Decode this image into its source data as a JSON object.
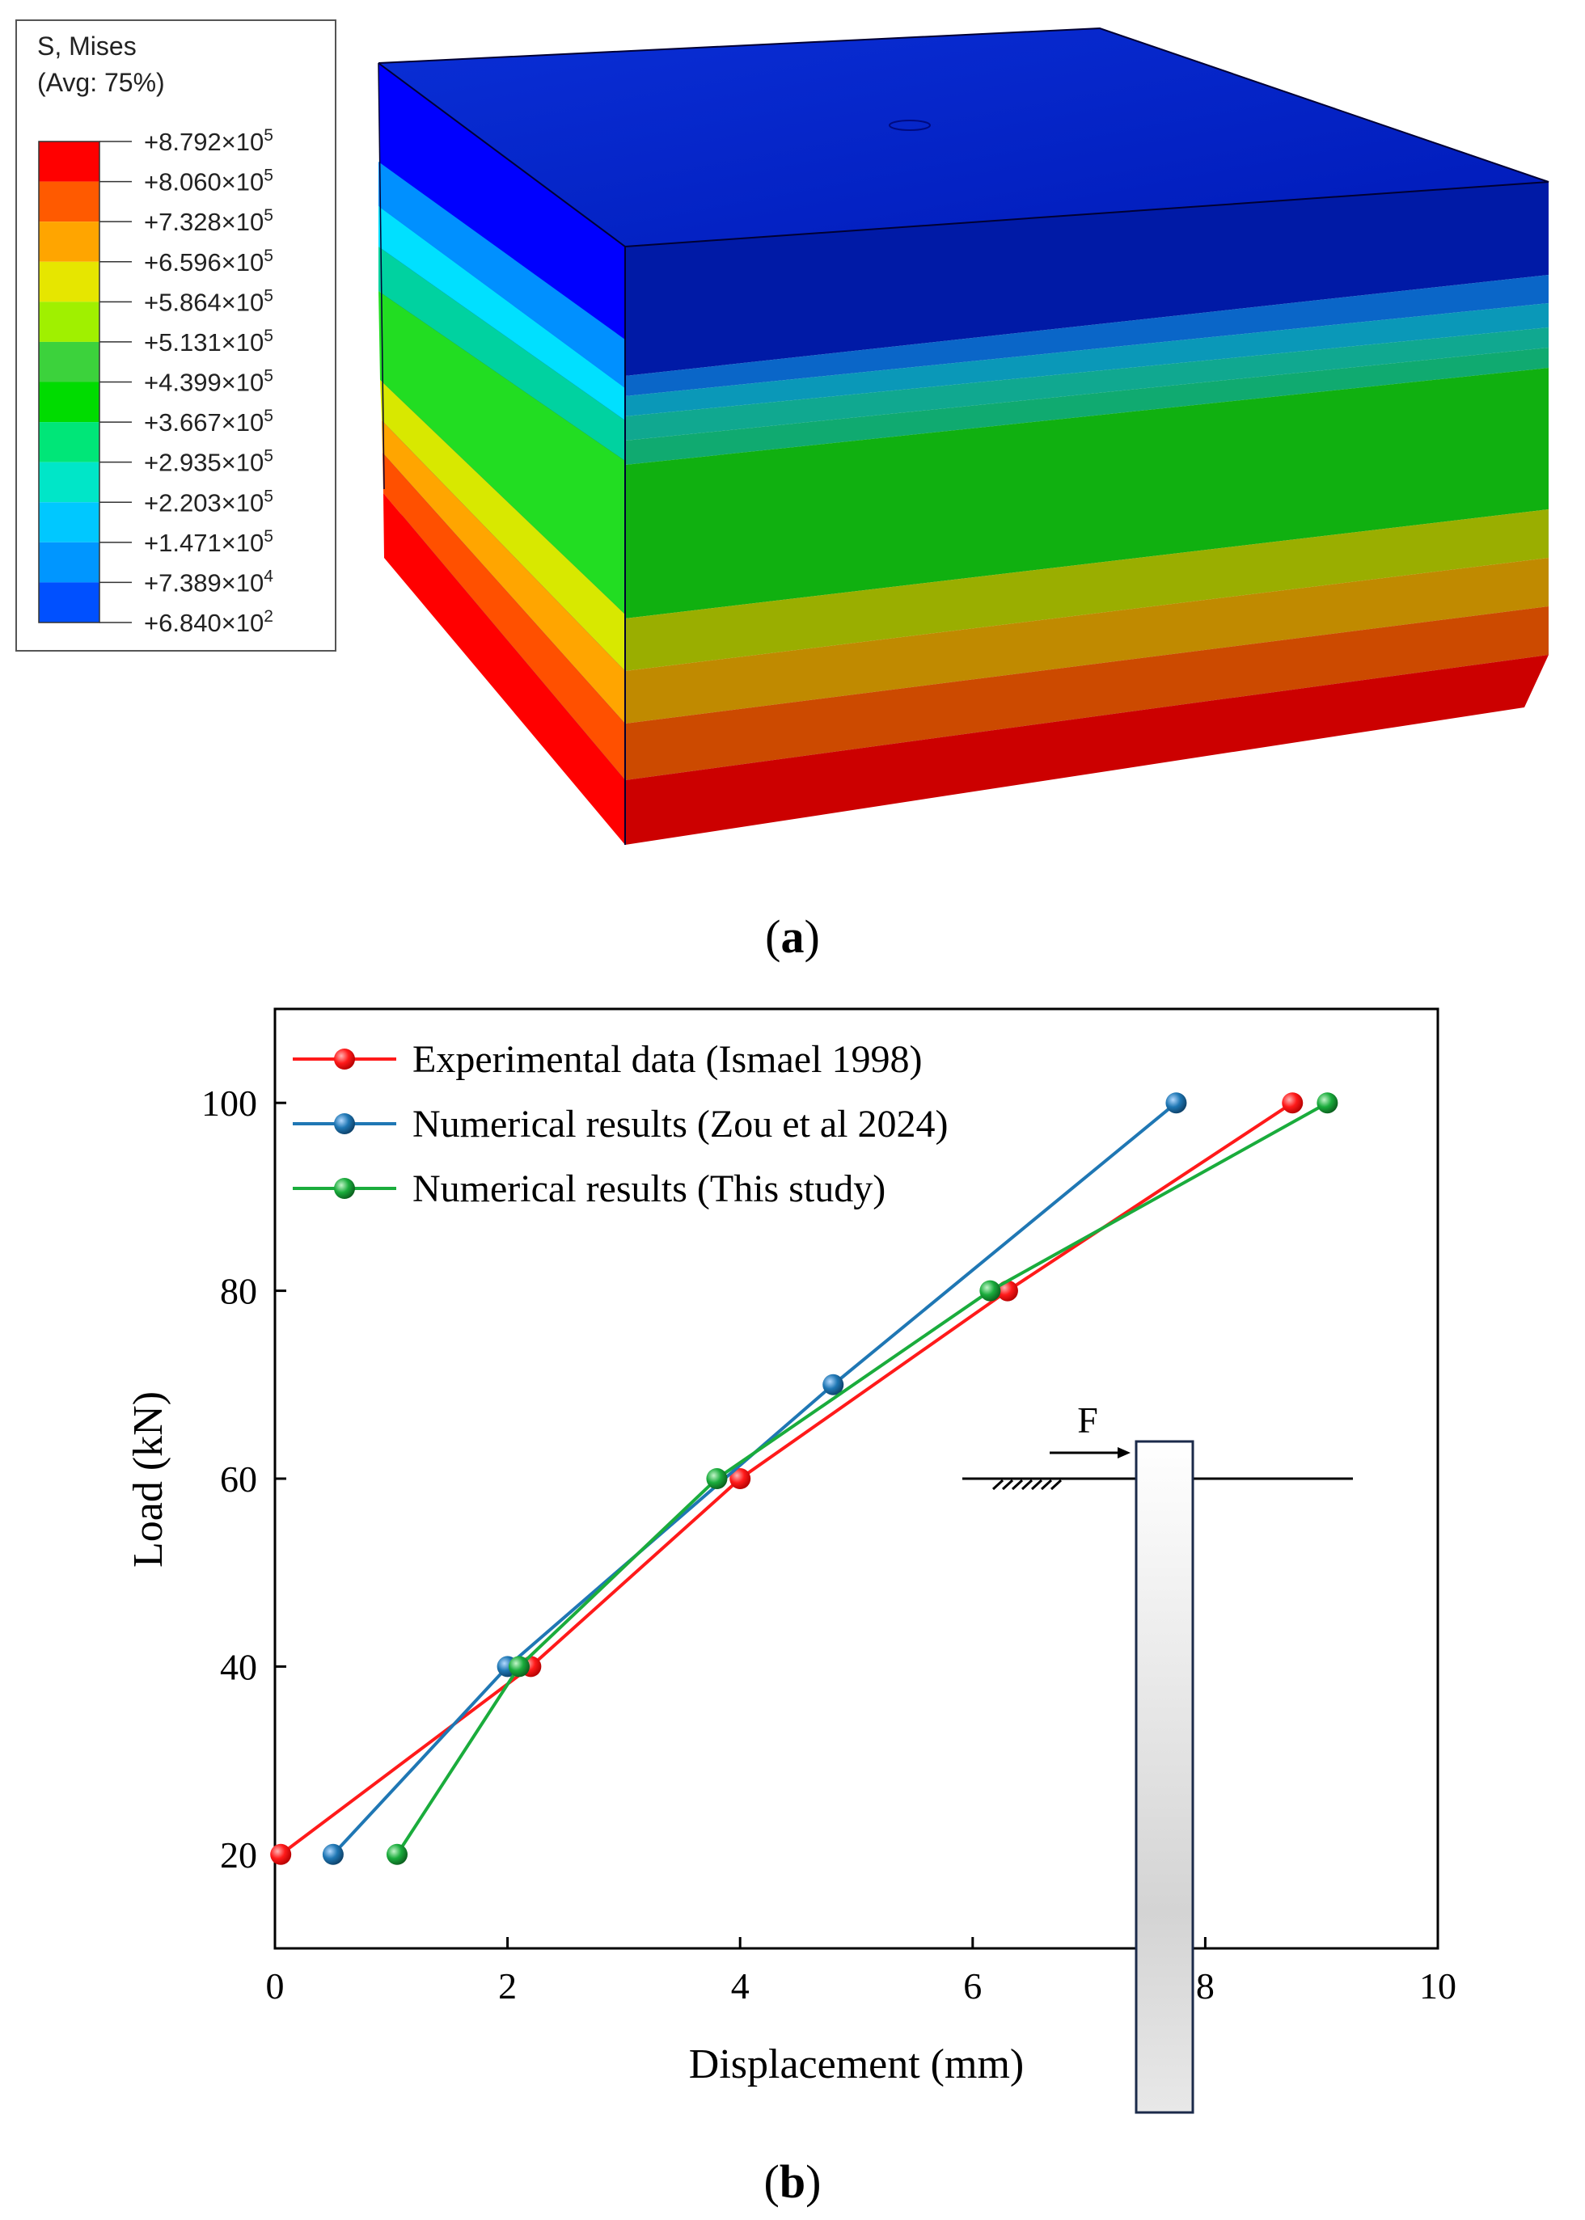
{
  "panel_a": {
    "label_open": "(",
    "label_letter": "a",
    "label_close": ")",
    "legend": {
      "title_line1": "S, Mises",
      "title_line2": "(Avg: 75%)",
      "entries": [
        {
          "mantissa": "+8.792",
          "exponent": "5",
          "color": "#ff0000"
        },
        {
          "mantissa": "+8.060",
          "exponent": "5",
          "color": "#ff5a00"
        },
        {
          "mantissa": "+7.328",
          "exponent": "5",
          "color": "#ffa500"
        },
        {
          "mantissa": "+6.596",
          "exponent": "5",
          "color": "#e6e600"
        },
        {
          "mantissa": "+5.864",
          "exponent": "5",
          "color": "#a0f000"
        },
        {
          "mantissa": "+5.131",
          "exponent": "5",
          "color": "#3cd23c"
        },
        {
          "mantissa": "+4.399",
          "exponent": "5",
          "color": "#00dc00"
        },
        {
          "mantissa": "+3.667",
          "exponent": "5",
          "color": "#00e678"
        },
        {
          "mantissa": "+2.935",
          "exponent": "5",
          "color": "#00e6c8"
        },
        {
          "mantissa": "+2.203",
          "exponent": "5",
          "color": "#00c8ff"
        },
        {
          "mantissa": "+1.471",
          "exponent": "5",
          "color": "#0096ff"
        },
        {
          "mantissa": "+7.389",
          "exponent": "4",
          "color": "#0050ff"
        },
        {
          "mantissa": "+6.840",
          "exponent": "2",
          "color": "#0000ff"
        }
      ]
    }
  },
  "chart_data": {
    "type": "line",
    "xlabel": "Displacement (mm)",
    "ylabel": "Load (kN)",
    "xlim": [
      0,
      10
    ],
    "ylim": [
      10,
      110
    ],
    "xticks": [
      0,
      2,
      4,
      6,
      8,
      10
    ],
    "yticks": [
      20,
      40,
      60,
      80,
      100
    ],
    "legend_position": "top-left",
    "series": [
      {
        "name": "Experimental data (Ismael 1998)",
        "color": "#ff1a1a",
        "x": [
          0.05,
          2.2,
          4.0,
          6.3,
          8.75
        ],
        "y": [
          20,
          40,
          60,
          80,
          100
        ]
      },
      {
        "name": "Numerical results (Zou et al 2024)",
        "color": "#1f77b4",
        "x": [
          0.5,
          2.0,
          4.8,
          7.75
        ],
        "y": [
          20,
          40,
          70,
          100
        ]
      },
      {
        "name": "Numerical results (This study)",
        "color": "#1aac3c",
        "x": [
          1.05,
          2.1,
          3.8,
          6.15,
          9.05
        ],
        "y": [
          20,
          40,
          60,
          80,
          100
        ]
      }
    ],
    "inset": {
      "force_label": "F"
    },
    "panel_label_open": "(",
    "panel_label_letter": "b",
    "panel_label_close": ")"
  }
}
